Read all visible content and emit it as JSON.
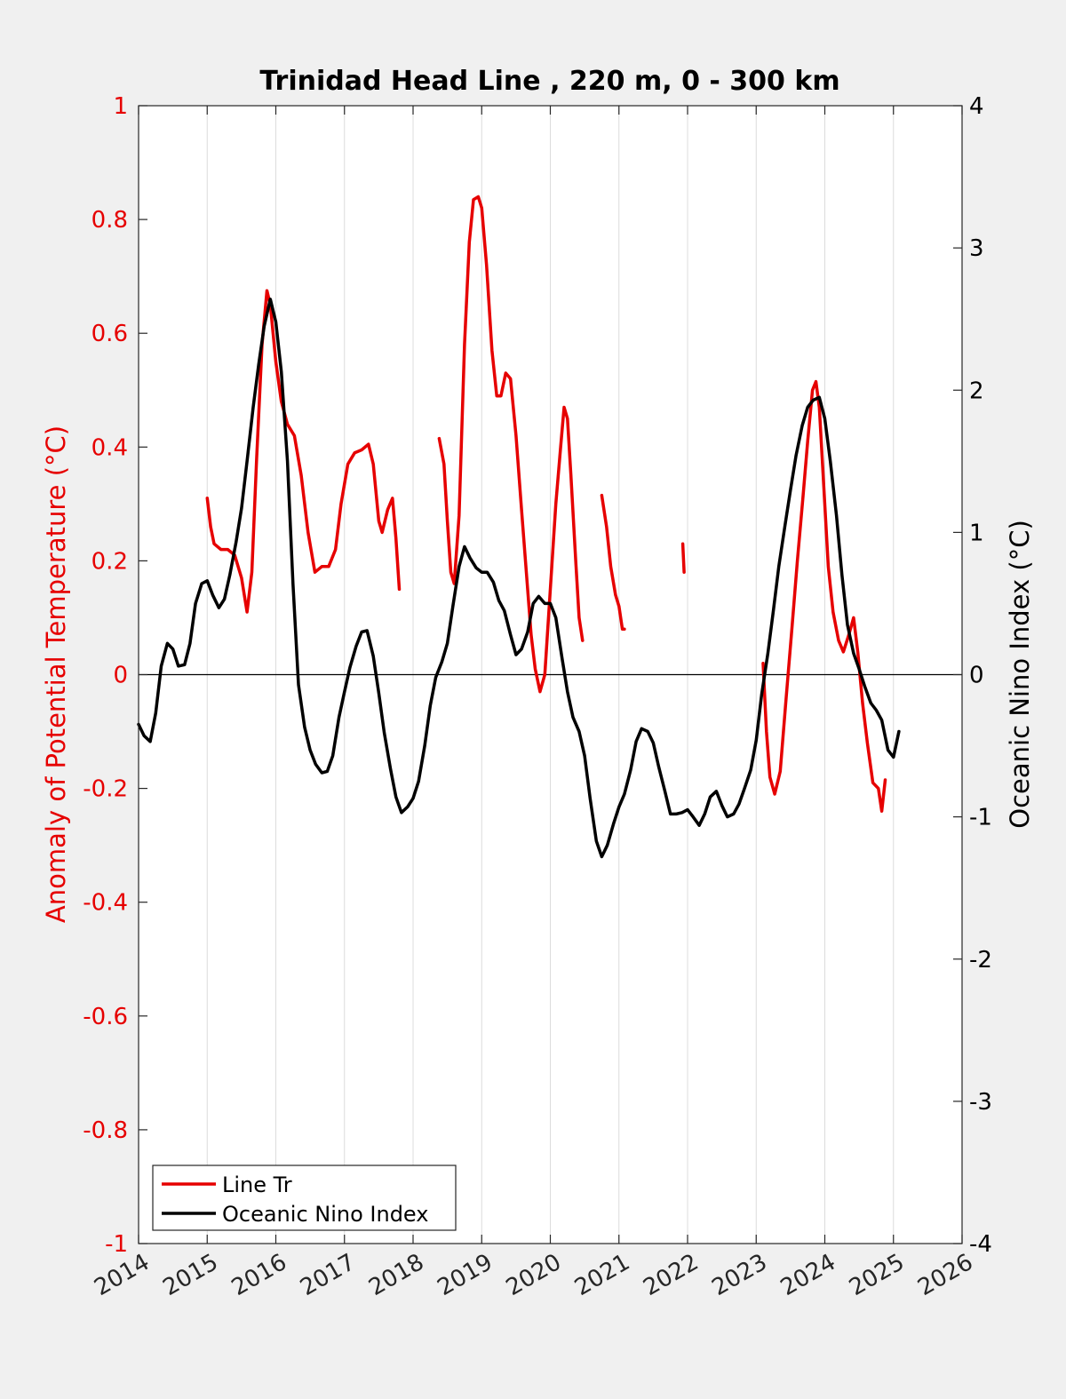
{
  "chart_data": {
    "type": "line",
    "title": "Trinidad Head Line , 220 m, 0 - 300 km",
    "ylabel_left": "Anomaly of Potential Temperature (°C)",
    "ylabel_right": "Oceanic Nino Index (°C)",
    "xlabel": "",
    "xlim": [
      2014,
      2026
    ],
    "ylim_left": [
      -1,
      1
    ],
    "ylim_right": [
      -4,
      4
    ],
    "x_ticks": [
      "2014",
      "2015",
      "2016",
      "2017",
      "2018",
      "2019",
      "2020",
      "2021",
      "2022",
      "2023",
      "2024",
      "2025",
      "2026"
    ],
    "y_ticks_left": [
      "-1",
      "-0.8",
      "-0.6",
      "-0.4",
      "-0.2",
      "0",
      "0.2",
      "0.4",
      "0.6",
      "0.8",
      "1"
    ],
    "y_ticks_right": [
      "-4",
      "-3",
      "-2",
      "-1",
      "0",
      "1",
      "2",
      "3",
      "4"
    ],
    "grid": "vertical",
    "legend_position": "bottom-left",
    "colors": {
      "left_axis": "#e60000",
      "series_red": "#e60000",
      "series_black": "#000000",
      "plot_bg": "#ffffff",
      "figure_bg": "#f0f0f0"
    },
    "series": [
      {
        "name": "Line Tr",
        "axis": "left",
        "color": "#e60000",
        "segments": [
          [
            [
              2015.0,
              0.31
            ],
            [
              2015.05,
              0.26
            ],
            [
              2015.1,
              0.23
            ],
            [
              2015.2,
              0.22
            ],
            [
              2015.3,
              0.22
            ],
            [
              2015.4,
              0.21
            ],
            [
              2015.5,
              0.17
            ],
            [
              2015.58,
              0.11
            ],
            [
              2015.65,
              0.18
            ],
            [
              2015.72,
              0.38
            ],
            [
              2015.8,
              0.58
            ],
            [
              2015.87,
              0.675
            ],
            [
              2015.92,
              0.65
            ],
            [
              2016.0,
              0.55
            ],
            [
              2016.08,
              0.48
            ],
            [
              2016.17,
              0.44
            ],
            [
              2016.27,
              0.42
            ],
            [
              2016.37,
              0.35
            ],
            [
              2016.47,
              0.25
            ],
            [
              2016.57,
              0.18
            ],
            [
              2016.67,
              0.19
            ],
            [
              2016.77,
              0.19
            ],
            [
              2016.87,
              0.22
            ],
            [
              2016.95,
              0.3
            ],
            [
              2017.05,
              0.37
            ],
            [
              2017.15,
              0.39
            ],
            [
              2017.25,
              0.395
            ],
            [
              2017.35,
              0.405
            ],
            [
              2017.42,
              0.37
            ],
            [
              2017.5,
              0.27
            ],
            [
              2017.55,
              0.25
            ],
            [
              2017.63,
              0.29
            ],
            [
              2017.7,
              0.31
            ],
            [
              2017.75,
              0.24
            ],
            [
              2017.8,
              0.15
            ]
          ],
          [
            [
              2018.38,
              0.415
            ],
            [
              2018.45,
              0.37
            ],
            [
              2018.5,
              0.27
            ],
            [
              2018.55,
              0.18
            ],
            [
              2018.6,
              0.16
            ],
            [
              2018.67,
              0.28
            ],
            [
              2018.75,
              0.58
            ],
            [
              2018.82,
              0.76
            ],
            [
              2018.88,
              0.835
            ],
            [
              2018.95,
              0.84
            ],
            [
              2019.0,
              0.82
            ],
            [
              2019.07,
              0.72
            ],
            [
              2019.15,
              0.57
            ],
            [
              2019.22,
              0.49
            ],
            [
              2019.28,
              0.49
            ],
            [
              2019.35,
              0.53
            ],
            [
              2019.42,
              0.52
            ],
            [
              2019.5,
              0.42
            ],
            [
              2019.58,
              0.29
            ],
            [
              2019.65,
              0.18
            ],
            [
              2019.72,
              0.07
            ],
            [
              2019.78,
              0.01
            ],
            [
              2019.85,
              -0.03
            ],
            [
              2019.92,
              0.0
            ],
            [
              2020.0,
              0.15
            ],
            [
              2020.08,
              0.3
            ],
            [
              2020.15,
              0.4
            ],
            [
              2020.2,
              0.47
            ],
            [
              2020.25,
              0.45
            ],
            [
              2020.3,
              0.35
            ],
            [
              2020.37,
              0.2
            ],
            [
              2020.42,
              0.1
            ],
            [
              2020.47,
              0.06
            ]
          ],
          [
            [
              2020.75,
              0.315
            ],
            [
              2020.82,
              0.26
            ],
            [
              2020.88,
              0.19
            ],
            [
              2020.95,
              0.14
            ],
            [
              2021.0,
              0.12
            ],
            [
              2021.05,
              0.08
            ],
            [
              2021.08,
              0.08
            ]
          ],
          [
            [
              2021.93,
              0.23
            ],
            [
              2021.95,
              0.18
            ]
          ],
          [
            [
              2023.1,
              0.02
            ],
            [
              2023.15,
              -0.1
            ],
            [
              2023.2,
              -0.18
            ],
            [
              2023.27,
              -0.21
            ],
            [
              2023.35,
              -0.17
            ],
            [
              2023.43,
              -0.05
            ],
            [
              2023.52,
              0.08
            ],
            [
              2023.6,
              0.2
            ],
            [
              2023.68,
              0.31
            ],
            [
              2023.75,
              0.41
            ],
            [
              2023.82,
              0.5
            ],
            [
              2023.87,
              0.515
            ],
            [
              2023.92,
              0.47
            ],
            [
              2023.98,
              0.34
            ],
            [
              2024.05,
              0.19
            ],
            [
              2024.12,
              0.11
            ],
            [
              2024.2,
              0.06
            ],
            [
              2024.27,
              0.04
            ],
            [
              2024.35,
              0.07
            ],
            [
              2024.42,
              0.1
            ],
            [
              2024.48,
              0.04
            ],
            [
              2024.55,
              -0.05
            ],
            [
              2024.62,
              -0.12
            ],
            [
              2024.7,
              -0.19
            ],
            [
              2024.78,
              -0.2
            ],
            [
              2024.83,
              -0.24
            ],
            [
              2024.88,
              -0.185
            ]
          ]
        ]
      },
      {
        "name": "Oceanic Nino Index",
        "axis": "right",
        "color": "#000000",
        "segments": [
          [
            [
              2014.0,
              -0.35
            ],
            [
              2014.08,
              -0.43
            ],
            [
              2014.17,
              -0.47
            ],
            [
              2014.25,
              -0.27
            ],
            [
              2014.33,
              0.06
            ],
            [
              2014.42,
              0.22
            ],
            [
              2014.5,
              0.18
            ],
            [
              2014.58,
              0.06
            ],
            [
              2014.67,
              0.07
            ],
            [
              2014.75,
              0.22
            ],
            [
              2014.83,
              0.5
            ],
            [
              2014.92,
              0.64
            ],
            [
              2015.0,
              0.66
            ],
            [
              2015.08,
              0.56
            ],
            [
              2015.17,
              0.47
            ],
            [
              2015.25,
              0.53
            ],
            [
              2015.33,
              0.7
            ],
            [
              2015.42,
              0.93
            ],
            [
              2015.5,
              1.17
            ],
            [
              2015.58,
              1.5
            ],
            [
              2015.67,
              1.88
            ],
            [
              2015.75,
              2.18
            ],
            [
              2015.83,
              2.45
            ],
            [
              2015.92,
              2.64
            ],
            [
              2016.0,
              2.48
            ],
            [
              2016.08,
              2.13
            ],
            [
              2016.17,
              1.5
            ],
            [
              2016.25,
              0.64
            ],
            [
              2016.33,
              -0.07
            ],
            [
              2016.42,
              -0.37
            ],
            [
              2016.5,
              -0.53
            ],
            [
              2016.58,
              -0.63
            ],
            [
              2016.67,
              -0.69
            ],
            [
              2016.75,
              -0.68
            ],
            [
              2016.83,
              -0.57
            ],
            [
              2016.92,
              -0.3
            ],
            [
              2017.0,
              -0.12
            ],
            [
              2017.08,
              0.05
            ],
            [
              2017.17,
              0.2
            ],
            [
              2017.25,
              0.3
            ],
            [
              2017.33,
              0.31
            ],
            [
              2017.42,
              0.13
            ],
            [
              2017.5,
              -0.13
            ],
            [
              2017.58,
              -0.41
            ],
            [
              2017.67,
              -0.66
            ],
            [
              2017.75,
              -0.86
            ],
            [
              2017.83,
              -0.97
            ],
            [
              2017.92,
              -0.93
            ],
            [
              2018.0,
              -0.87
            ],
            [
              2018.08,
              -0.75
            ],
            [
              2018.17,
              -0.5
            ],
            [
              2018.25,
              -0.22
            ],
            [
              2018.33,
              -0.02
            ],
            [
              2018.42,
              0.09
            ],
            [
              2018.5,
              0.22
            ],
            [
              2018.58,
              0.48
            ],
            [
              2018.67,
              0.76
            ],
            [
              2018.75,
              0.9
            ],
            [
              2018.83,
              0.82
            ],
            [
              2018.92,
              0.75
            ],
            [
              2019.0,
              0.72
            ],
            [
              2019.08,
              0.72
            ],
            [
              2019.17,
              0.65
            ],
            [
              2019.25,
              0.52
            ],
            [
              2019.33,
              0.45
            ],
            [
              2019.42,
              0.28
            ],
            [
              2019.5,
              0.14
            ],
            [
              2019.58,
              0.18
            ],
            [
              2019.67,
              0.3
            ],
            [
              2019.75,
              0.5
            ],
            [
              2019.83,
              0.55
            ],
            [
              2019.92,
              0.5
            ],
            [
              2020.0,
              0.5
            ],
            [
              2020.08,
              0.4
            ],
            [
              2020.17,
              0.12
            ],
            [
              2020.25,
              -0.12
            ],
            [
              2020.33,
              -0.3
            ],
            [
              2020.42,
              -0.4
            ],
            [
              2020.5,
              -0.57
            ],
            [
              2020.58,
              -0.87
            ],
            [
              2020.67,
              -1.17
            ],
            [
              2020.75,
              -1.28
            ],
            [
              2020.83,
              -1.2
            ],
            [
              2020.92,
              -1.05
            ],
            [
              2021.0,
              -0.93
            ],
            [
              2021.08,
              -0.84
            ],
            [
              2021.17,
              -0.67
            ],
            [
              2021.25,
              -0.47
            ],
            [
              2021.33,
              -0.38
            ],
            [
              2021.42,
              -0.4
            ],
            [
              2021.5,
              -0.48
            ],
            [
              2021.58,
              -0.65
            ],
            [
              2021.67,
              -0.82
            ],
            [
              2021.75,
              -0.98
            ],
            [
              2021.83,
              -0.98
            ],
            [
              2021.92,
              -0.97
            ],
            [
              2022.0,
              -0.95
            ],
            [
              2022.08,
              -1.0
            ],
            [
              2022.17,
              -1.06
            ],
            [
              2022.25,
              -0.98
            ],
            [
              2022.33,
              -0.86
            ],
            [
              2022.42,
              -0.82
            ],
            [
              2022.5,
              -0.92
            ],
            [
              2022.58,
              -1.0
            ],
            [
              2022.67,
              -0.98
            ],
            [
              2022.75,
              -0.91
            ],
            [
              2022.83,
              -0.8
            ],
            [
              2022.92,
              -0.67
            ],
            [
              2023.0,
              -0.46
            ],
            [
              2023.08,
              -0.14
            ],
            [
              2023.17,
              0.15
            ],
            [
              2023.25,
              0.45
            ],
            [
              2023.33,
              0.76
            ],
            [
              2023.42,
              1.05
            ],
            [
              2023.5,
              1.3
            ],
            [
              2023.58,
              1.54
            ],
            [
              2023.67,
              1.75
            ],
            [
              2023.75,
              1.88
            ],
            [
              2023.83,
              1.93
            ],
            [
              2023.92,
              1.95
            ],
            [
              2024.0,
              1.8
            ],
            [
              2024.08,
              1.5
            ],
            [
              2024.17,
              1.12
            ],
            [
              2024.25,
              0.7
            ],
            [
              2024.33,
              0.35
            ],
            [
              2024.42,
              0.15
            ],
            [
              2024.5,
              0.04
            ],
            [
              2024.58,
              -0.08
            ],
            [
              2024.67,
              -0.2
            ],
            [
              2024.75,
              -0.25
            ],
            [
              2024.83,
              -0.32
            ],
            [
              2024.92,
              -0.53
            ],
            [
              2025.0,
              -0.58
            ],
            [
              2025.08,
              -0.4
            ]
          ]
        ]
      }
    ]
  }
}
